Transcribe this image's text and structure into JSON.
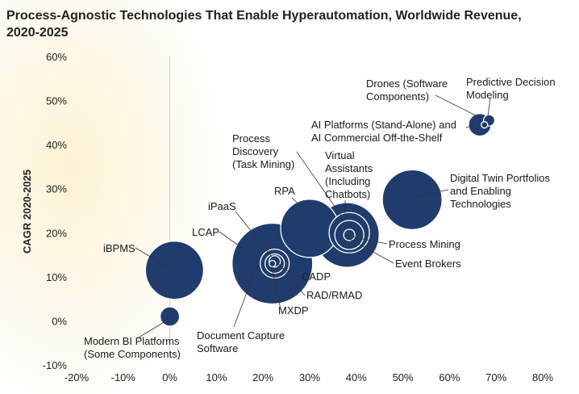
{
  "chart_data": {
    "type": "bubble",
    "title": "Process-Agnostic Technologies That Enable Hyperautomation, Worldwide Revenue, 2020-2025",
    "ylabel": "CAGR 2020-2025",
    "xlabel": "",
    "xlim": [
      -20,
      80
    ],
    "ylim": [
      -10,
      60
    ],
    "x_ticks": [
      "-20%",
      "-10%",
      "0%",
      "10%",
      "20%",
      "30%",
      "40%",
      "50%",
      "60%",
      "70%",
      "80%"
    ],
    "y_ticks": [
      "60%",
      "50%",
      "40%",
      "30%",
      "20%",
      "10%",
      "0%",
      "-10%"
    ],
    "bubble_color": "#203c6c",
    "points": [
      {
        "name": "iBPMS",
        "label": [
          "iBPMS"
        ],
        "x": 1,
        "y": 11.5,
        "size": 36
      },
      {
        "name": "Modern BI Platforms (Some Components)",
        "label": [
          "Modern BI Platforms",
          "(Some Components)"
        ],
        "x": 0,
        "y": 1,
        "size": 12
      },
      {
        "name": "LCAP",
        "label": [
          "LCAP"
        ],
        "x": 22,
        "y": 13,
        "size": 50
      },
      {
        "name": "iPaaS",
        "label": [
          "iPaaS"
        ],
        "x": 22.5,
        "y": 13,
        "size": 18
      },
      {
        "name": "CADP",
        "label": [
          "CADP"
        ],
        "x": 22.5,
        "y": 13,
        "size": 12
      },
      {
        "name": "MXDP",
        "label": [
          "MXDP"
        ],
        "x": 22,
        "y": 13,
        "size": 4
      },
      {
        "name": "RAD/RMAD",
        "label": [
          "RAD/RMAD"
        ],
        "x": 22.5,
        "y": 13.5,
        "size": 7
      },
      {
        "name": "RPA",
        "label": [
          "RPA"
        ],
        "x": 30,
        "y": 21,
        "size": 36
      },
      {
        "name": "Process Discovery (Task Mining)",
        "label": [
          "Process",
          "Discovery",
          "(Task Mining)"
        ],
        "x": 38,
        "y": 19.5,
        "size": 40
      },
      {
        "name": "Virtual Assistants (Including Chatbots)",
        "label": [
          "Virtual",
          "Assistants",
          "(Including",
          "Chatbots)"
        ],
        "x": 38.5,
        "y": 20,
        "size": 25
      },
      {
        "name": "Process Mining",
        "label": [
          "Process Mining"
        ],
        "x": 38.5,
        "y": 19.5,
        "size": 18
      },
      {
        "name": "Event Brokers",
        "label": [
          "Event Brokers"
        ],
        "x": 38.5,
        "y": 19.5,
        "size": 7
      },
      {
        "name": "Digital Twin Portfolios and Enabling Technologies",
        "label": [
          "Digital Twin Portfolios",
          "and Enabling",
          "Technologies"
        ],
        "x": 52,
        "y": 27.5,
        "size": 37
      },
      {
        "name": "AI Platforms (Stand-Alone) and AI Commercial Off-the-Shelf",
        "label": [
          "AI Platforms (Stand-Alone) and",
          "AI Commercial Off-the-Shelf"
        ],
        "x": 66.5,
        "y": 44.5,
        "size": 14
      },
      {
        "name": "Drones (Software Components)",
        "label": [
          "Drones (Software",
          "Components)"
        ],
        "x": 67.5,
        "y": 44.5,
        "size": 4
      },
      {
        "name": "Predictive Decision Modeling",
        "label": [
          "Predictive Decision",
          "Modeling"
        ],
        "x": 68.5,
        "y": 45.5,
        "size": 7
      }
    ]
  }
}
